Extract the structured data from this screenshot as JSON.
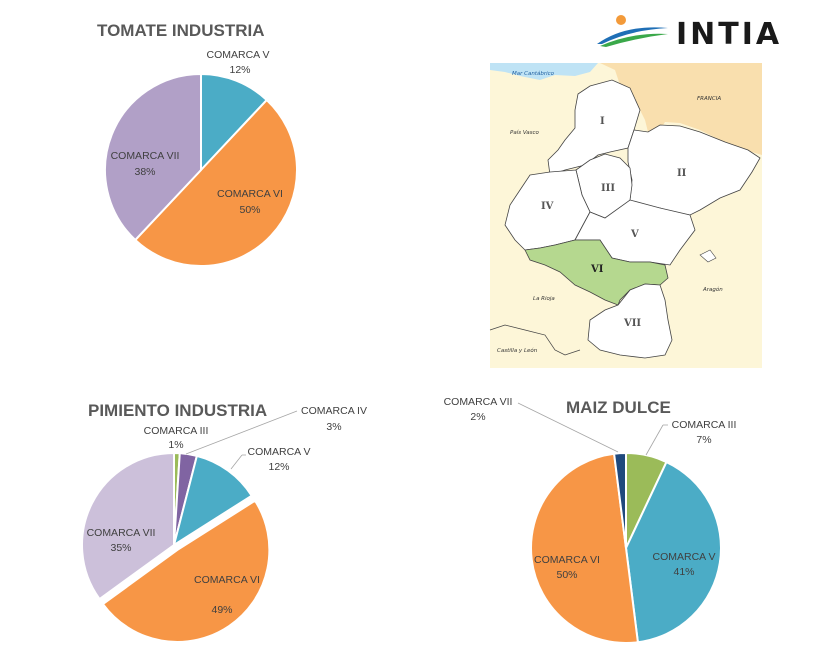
{
  "logo": {
    "text": "INTIA"
  },
  "map": {
    "labels": {
      "sea": "Mar Cantábrico",
      "france": "FRANCIA",
      "basque": "País Vasco",
      "rioja": "La Rioja",
      "aragon": "Aragón",
      "castilla": "Castilla y León"
    },
    "regions": [
      "I",
      "II",
      "III",
      "IV",
      "V",
      "VI",
      "VII"
    ],
    "highlighted_region": "VI",
    "colors": {
      "land": "#fdf6d8",
      "france": "#f9dfae",
      "sea": "#bfe3f5",
      "region": "#ffffff",
      "highlight": "#b5d88f"
    }
  },
  "chart_data": [
    {
      "type": "pie",
      "title": "TOMATE INDUSTRIA",
      "categories": [
        "COMARCA V",
        "COMARCA VI",
        "COMARCA VII"
      ],
      "values": [
        12,
        50,
        38
      ],
      "value_labels": [
        "12%",
        "50%",
        "38%"
      ],
      "colors": [
        "#4bacc6",
        "#f79646",
        "#b1a0c7"
      ]
    },
    {
      "type": "pie",
      "title": "PIMIENTO INDUSTRIA",
      "categories": [
        "COMARCA III",
        "COMARCA IV",
        "COMARCA V",
        "COMARCA VI",
        "COMARCA VII"
      ],
      "values": [
        1,
        3,
        12,
        49,
        35
      ],
      "value_labels": [
        "1%",
        "3%",
        "12%",
        "49%",
        "35%"
      ],
      "colors": [
        "#9bbb59",
        "#8064a2",
        "#4bacc6",
        "#f79646",
        "#ccc0da"
      ]
    },
    {
      "type": "pie",
      "title": "MAIZ DULCE",
      "categories": [
        "COMARCA III",
        "COMARCA V",
        "COMARCA VI",
        "COMARCA VII"
      ],
      "values": [
        7,
        41,
        50,
        2
      ],
      "value_labels": [
        "7%",
        "41%",
        "50%",
        "2%"
      ],
      "colors": [
        "#9bbb59",
        "#4bacc6",
        "#f79646",
        "#1f497d"
      ]
    }
  ]
}
